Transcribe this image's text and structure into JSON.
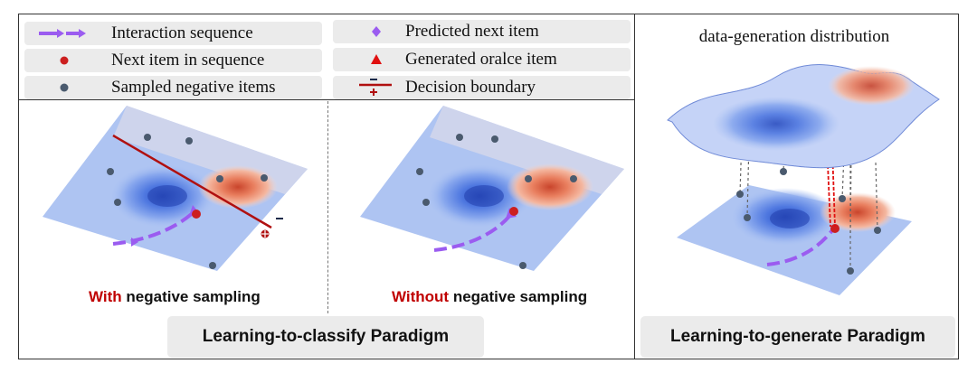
{
  "legend": {
    "interaction_sequence": "Interaction sequence",
    "next_item": "Next item in sequence",
    "sampled_negative": "Sampled negative items",
    "predicted_next": "Predicted next item",
    "generated_oracle": "Generated oralce item",
    "decision_boundary": "Decision boundary"
  },
  "panels": {
    "with_prefix": "With",
    "with_suffix": " negative sampling",
    "without_prefix": "Without",
    "without_suffix": " negative sampling",
    "distribution_title": "data-generation distribution"
  },
  "paradigms": {
    "classify": "Learning-to-classify Paradigm",
    "generate": "Learning-to-generate Paradigm"
  },
  "colors": {
    "sequence": "#9b5cf0",
    "next_item": "#cc1f1f",
    "negative": "#4a5a6e",
    "predicted": "#9b5cf0",
    "oracle": "#e01010",
    "boundary": "#b01010",
    "highlight": "#c00000"
  }
}
